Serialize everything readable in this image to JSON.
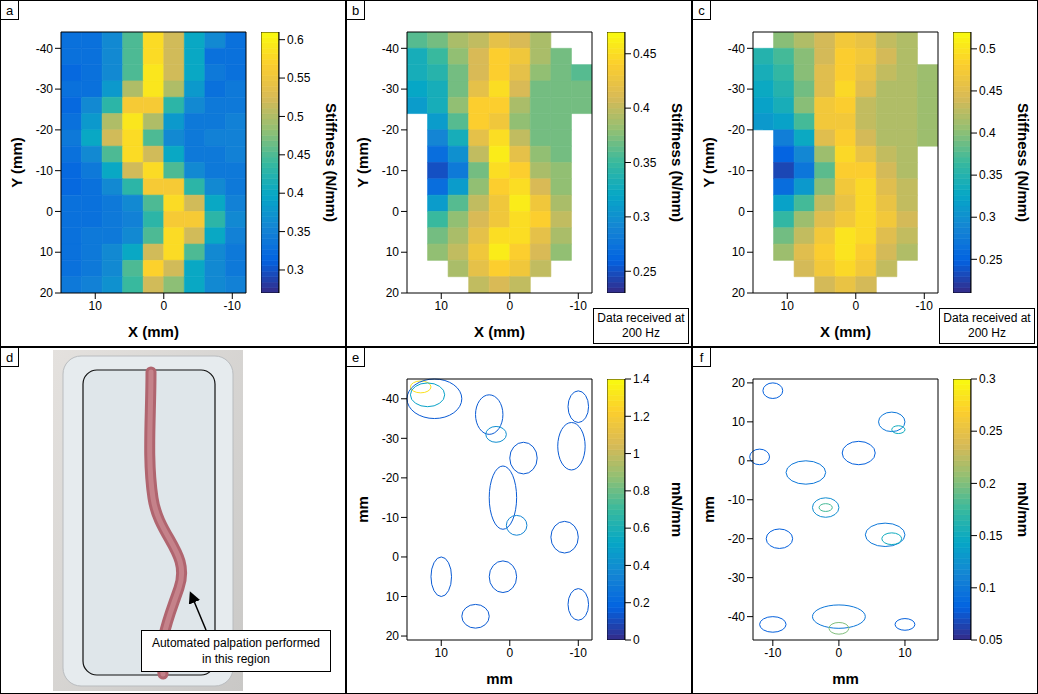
{
  "chart_data": [
    {
      "panel": "a",
      "type": "heatmap",
      "x_label": "X (mm)",
      "y_label": "Y (mm)",
      "xlim": [
        15,
        -12
      ],
      "ylim": [
        20,
        -44
      ],
      "xticks": [
        10,
        0,
        -10
      ],
      "yticks": [
        -40,
        -30,
        -20,
        -10,
        0,
        10,
        20
      ],
      "x": [
        13.5,
        10.5,
        7.5,
        4.5,
        1.5,
        -1.5,
        -4.5,
        -7.5,
        -10.5
      ],
      "y": [
        -42,
        -38,
        -34,
        -30,
        -26,
        -22,
        -18,
        -14,
        -10,
        -6,
        -2,
        2,
        6,
        10,
        14,
        18
      ],
      "cells": [
        [
          0.33,
          0.33,
          0.36,
          0.45,
          0.58,
          0.52,
          0.4,
          0.36,
          0.33
        ],
        [
          0.33,
          0.33,
          0.36,
          0.45,
          0.58,
          0.52,
          0.4,
          0.33,
          0.33
        ],
        [
          0.32,
          0.33,
          0.36,
          0.45,
          0.59,
          0.52,
          0.4,
          0.34,
          0.33
        ],
        [
          0.33,
          0.33,
          0.38,
          0.5,
          0.59,
          0.5,
          0.38,
          0.33,
          0.34
        ],
        [
          0.32,
          0.36,
          0.43,
          0.56,
          0.56,
          0.43,
          0.36,
          0.34,
          0.34
        ],
        [
          0.33,
          0.38,
          0.5,
          0.59,
          0.5,
          0.38,
          0.34,
          0.34,
          0.35
        ],
        [
          0.34,
          0.4,
          0.52,
          0.58,
          0.45,
          0.36,
          0.34,
          0.35,
          0.35
        ],
        [
          0.33,
          0.36,
          0.45,
          0.58,
          0.52,
          0.4,
          0.34,
          0.34,
          0.35
        ],
        [
          0.32,
          0.34,
          0.4,
          0.52,
          0.58,
          0.45,
          0.36,
          0.34,
          0.34
        ],
        [
          0.32,
          0.33,
          0.36,
          0.43,
          0.56,
          0.56,
          0.43,
          0.36,
          0.34
        ],
        [
          0.33,
          0.33,
          0.34,
          0.36,
          0.45,
          0.58,
          0.52,
          0.4,
          0.35
        ],
        [
          0.33,
          0.33,
          0.34,
          0.35,
          0.43,
          0.56,
          0.56,
          0.43,
          0.36
        ],
        [
          0.33,
          0.34,
          0.34,
          0.36,
          0.45,
          0.58,
          0.52,
          0.4,
          0.35
        ],
        [
          0.33,
          0.34,
          0.36,
          0.4,
          0.52,
          0.58,
          0.45,
          0.36,
          0.34
        ],
        [
          0.33,
          0.34,
          0.36,
          0.45,
          0.57,
          0.52,
          0.4,
          0.36,
          0.34
        ],
        [
          0.34,
          0.35,
          0.37,
          0.44,
          0.52,
          0.48,
          0.4,
          0.36,
          0.35
        ]
      ],
      "colorbar": {
        "label": "Stiffness (N/mm)",
        "lim": [
          0.27,
          0.61
        ],
        "ticks": [
          0.3,
          0.35,
          0.4,
          0.45,
          0.5,
          0.55,
          0.6
        ]
      }
    },
    {
      "panel": "b",
      "type": "heatmap",
      "x_label": "X (mm)",
      "y_label": "Y (mm)",
      "xlim": [
        15,
        -12
      ],
      "ylim": [
        20,
        -44
      ],
      "xticks": [
        10,
        0,
        -10
      ],
      "yticks": [
        -40,
        -30,
        -20,
        -10,
        0,
        10,
        20
      ],
      "annotation": "Data received at 200 Hz",
      "x": [
        13.5,
        10.5,
        7.5,
        4.5,
        1.5,
        -1.5,
        -4.5,
        -7.5,
        -10.5
      ],
      "y": [
        -42,
        -38,
        -34,
        -30,
        -26,
        -22,
        -18,
        -14,
        -10,
        -6,
        -2,
        2,
        6,
        10,
        14,
        18
      ],
      "cells": [
        [
          0.36,
          0.37,
          0.39,
          0.4,
          0.42,
          0.41,
          0.39,
          null,
          null
        ],
        [
          0.33,
          0.35,
          0.38,
          0.41,
          0.44,
          0.43,
          0.39,
          0.37,
          null
        ],
        [
          0.33,
          0.34,
          0.37,
          0.41,
          0.44,
          0.42,
          0.38,
          0.37,
          0.36
        ],
        [
          0.32,
          0.33,
          0.37,
          0.42,
          0.45,
          0.41,
          0.37,
          0.37,
          0.37
        ],
        [
          0.31,
          0.33,
          0.38,
          0.44,
          0.44,
          0.39,
          0.37,
          0.37,
          0.37
        ],
        [
          null,
          0.31,
          0.36,
          0.44,
          0.43,
          0.38,
          0.37,
          0.37,
          null
        ],
        [
          null,
          0.29,
          0.33,
          0.42,
          0.45,
          0.4,
          0.37,
          0.37,
          null
        ],
        [
          null,
          0.27,
          0.3,
          0.4,
          0.46,
          0.42,
          0.38,
          0.37,
          null
        ],
        [
          null,
          0.25,
          0.28,
          0.37,
          0.45,
          0.44,
          0.39,
          0.38,
          null
        ],
        [
          null,
          0.27,
          0.31,
          0.38,
          0.44,
          0.45,
          0.41,
          0.38,
          null
        ],
        [
          null,
          0.31,
          0.36,
          0.4,
          0.43,
          0.46,
          0.43,
          0.39,
          null
        ],
        [
          null,
          0.35,
          0.38,
          0.41,
          0.43,
          0.45,
          0.44,
          0.4,
          null
        ],
        [
          null,
          0.37,
          0.39,
          0.42,
          0.45,
          0.45,
          0.42,
          0.39,
          null
        ],
        [
          null,
          0.38,
          0.4,
          0.43,
          0.46,
          0.44,
          0.41,
          0.38,
          null
        ],
        [
          null,
          null,
          0.39,
          0.42,
          0.44,
          0.43,
          0.4,
          null,
          null
        ],
        [
          null,
          null,
          null,
          0.4,
          0.41,
          0.4,
          null,
          null,
          null
        ]
      ],
      "colorbar": {
        "label": "Stiffness (N/mm)",
        "lim": [
          0.23,
          0.47
        ],
        "ticks": [
          0.25,
          0.3,
          0.35,
          0.4,
          0.45
        ]
      }
    },
    {
      "panel": "c",
      "type": "heatmap",
      "x_label": "X (mm)",
      "y_label": "Y (mm)",
      "xlim": [
        15,
        -12
      ],
      "ylim": [
        20,
        -44
      ],
      "xticks": [
        10,
        0,
        -10
      ],
      "yticks": [
        -40,
        -30,
        -20,
        -10,
        0,
        10,
        20
      ],
      "annotation": "Data received at 200 Hz",
      "x": [
        13.5,
        10.5,
        7.5,
        4.5,
        1.5,
        -1.5,
        -4.5,
        -7.5,
        -10.5
      ],
      "y": [
        -42,
        -38,
        -34,
        -30,
        -26,
        -22,
        -18,
        -14,
        -10,
        -6,
        -2,
        2,
        6,
        10,
        14,
        18
      ],
      "cells": [
        [
          null,
          0.4,
          0.42,
          0.44,
          0.47,
          0.46,
          0.43,
          0.42,
          null
        ],
        [
          0.35,
          0.37,
          0.4,
          0.44,
          0.48,
          0.47,
          0.44,
          0.42,
          null
        ],
        [
          0.34,
          0.36,
          0.4,
          0.45,
          0.48,
          0.46,
          0.43,
          0.42,
          0.41
        ],
        [
          0.33,
          0.35,
          0.39,
          0.45,
          0.49,
          0.45,
          0.42,
          0.42,
          0.41
        ],
        [
          0.32,
          0.34,
          0.4,
          0.47,
          0.48,
          0.43,
          0.42,
          0.42,
          0.41
        ],
        [
          0.31,
          0.32,
          0.37,
          0.47,
          0.47,
          0.43,
          0.42,
          0.42,
          0.41
        ],
        [
          null,
          0.28,
          0.33,
          0.45,
          0.48,
          0.44,
          0.42,
          0.42,
          0.41
        ],
        [
          null,
          0.25,
          0.29,
          0.41,
          0.49,
          0.46,
          0.43,
          0.42,
          null
        ],
        [
          null,
          0.23,
          0.27,
          0.38,
          0.48,
          0.48,
          0.44,
          0.42,
          null
        ],
        [
          null,
          0.26,
          0.31,
          0.4,
          0.47,
          0.49,
          0.45,
          0.43,
          null
        ],
        [
          null,
          0.32,
          0.37,
          0.43,
          0.46,
          0.49,
          0.46,
          0.43,
          null
        ],
        [
          null,
          0.36,
          0.41,
          0.45,
          0.47,
          0.49,
          0.47,
          0.44,
          null
        ],
        [
          null,
          0.39,
          0.43,
          0.47,
          0.5,
          0.49,
          0.45,
          0.43,
          null
        ],
        [
          null,
          0.41,
          0.45,
          0.48,
          0.5,
          0.48,
          0.44,
          0.42,
          null
        ],
        [
          null,
          null,
          0.44,
          0.47,
          0.49,
          0.47,
          0.43,
          null,
          null
        ],
        [
          null,
          null,
          null,
          0.44,
          0.46,
          0.44,
          null,
          null,
          null
        ]
      ],
      "colorbar": {
        "label": "Stiffness (N/mm)",
        "lim": [
          0.21,
          0.52
        ],
        "ticks": [
          0.25,
          0.3,
          0.35,
          0.4,
          0.45,
          0.5
        ]
      }
    },
    {
      "panel": "e",
      "type": "contour",
      "x_label": "mm",
      "y_label": "mm",
      "xlim": [
        15,
        -12
      ],
      "ylim": [
        21,
        -45
      ],
      "xticks": [
        10,
        0,
        -10
      ],
      "yticks": [
        -40,
        -30,
        -20,
        -10,
        0,
        10,
        20
      ],
      "contours": [
        {
          "x": 13,
          "y": -43,
          "width": 3,
          "height": 3,
          "level": 1.3
        },
        {
          "x": 12,
          "y": -41,
          "width": 5,
          "height": 6,
          "level": 0.5
        },
        {
          "x": 11,
          "y": -40,
          "width": 8,
          "height": 10,
          "level": 0.15
        },
        {
          "x": 3,
          "y": -36,
          "width": 4,
          "height": 10,
          "level": 0.15
        },
        {
          "x": 2,
          "y": -31,
          "width": 3,
          "height": 4,
          "level": 0.4
        },
        {
          "x": -2,
          "y": -25,
          "width": 4,
          "height": 8,
          "level": 0.15
        },
        {
          "x": -9,
          "y": -28,
          "width": 4,
          "height": 12,
          "level": 0.15
        },
        {
          "x": -10,
          "y": -38,
          "width": 3,
          "height": 8,
          "level": 0.15
        },
        {
          "x": 1,
          "y": -15,
          "width": 4,
          "height": 16,
          "level": 0.15
        },
        {
          "x": -1,
          "y": -8,
          "width": 3,
          "height": 5,
          "level": 0.35
        },
        {
          "x": 1,
          "y": 5,
          "width": 4,
          "height": 8,
          "level": 0.15
        },
        {
          "x": -8,
          "y": -5,
          "width": 4,
          "height": 8,
          "level": 0.15
        },
        {
          "x": 10,
          "y": 5,
          "width": 3,
          "height": 10,
          "level": 0.15
        },
        {
          "x": -10,
          "y": 12,
          "width": 3,
          "height": 8,
          "level": 0.15
        },
        {
          "x": 5,
          "y": 15,
          "width": 4,
          "height": 6,
          "level": 0.15
        }
      ],
      "colorbar": {
        "label": "mN/mm",
        "lim": [
          0,
          1.4
        ],
        "ticks": [
          0,
          0.2,
          0.4,
          0.6,
          0.8,
          1,
          1.2,
          1.4
        ]
      }
    },
    {
      "panel": "f",
      "type": "contour",
      "x_label": "mm",
      "y_label": "mm",
      "xlim": [
        -13,
        15
      ],
      "ylim": [
        -46,
        21
      ],
      "xticks": [
        -10,
        0,
        10
      ],
      "yticks": [
        -40,
        -30,
        -20,
        -10,
        0,
        10,
        20
      ],
      "contours": [
        {
          "x": -10,
          "y": 18,
          "width": 3,
          "height": 4,
          "level": 0.08
        },
        {
          "x": 8,
          "y": 10,
          "width": 4,
          "height": 5,
          "level": 0.1
        },
        {
          "x": 9,
          "y": 8,
          "width": 2,
          "height": 2,
          "level": 0.15
        },
        {
          "x": 3,
          "y": 2,
          "width": 5,
          "height": 6,
          "level": 0.08
        },
        {
          "x": -12,
          "y": 1,
          "width": 3,
          "height": 4,
          "level": 0.08
        },
        {
          "x": -5,
          "y": -3,
          "width": 6,
          "height": 6,
          "level": 0.1
        },
        {
          "x": -2,
          "y": -12,
          "width": 4,
          "height": 5,
          "level": 0.12
        },
        {
          "x": -2,
          "y": -12,
          "width": 2,
          "height": 2,
          "level": 0.18
        },
        {
          "x": 7,
          "y": -19,
          "width": 6,
          "height": 6,
          "level": 0.1
        },
        {
          "x": 8,
          "y": -20,
          "width": 3,
          "height": 3,
          "level": 0.15
        },
        {
          "x": -9,
          "y": -20,
          "width": 4,
          "height": 5,
          "level": 0.08
        },
        {
          "x": 0,
          "y": -40,
          "width": 8,
          "height": 6,
          "level": 0.1
        },
        {
          "x": 0,
          "y": -43,
          "width": 3,
          "height": 3,
          "level": 0.2
        },
        {
          "x": -10,
          "y": -42,
          "width": 4,
          "height": 4,
          "level": 0.08
        },
        {
          "x": 10,
          "y": -42,
          "width": 3,
          "height": 3,
          "level": 0.08
        }
      ],
      "colorbar": {
        "label": "mN/mm",
        "lim": [
          0.05,
          0.3
        ],
        "ticks": [
          0.05,
          0.1,
          0.15,
          0.2,
          0.25,
          0.3
        ]
      }
    }
  ],
  "photo": {
    "panel": "d",
    "annotation": "Automated palpation performed in this region"
  }
}
